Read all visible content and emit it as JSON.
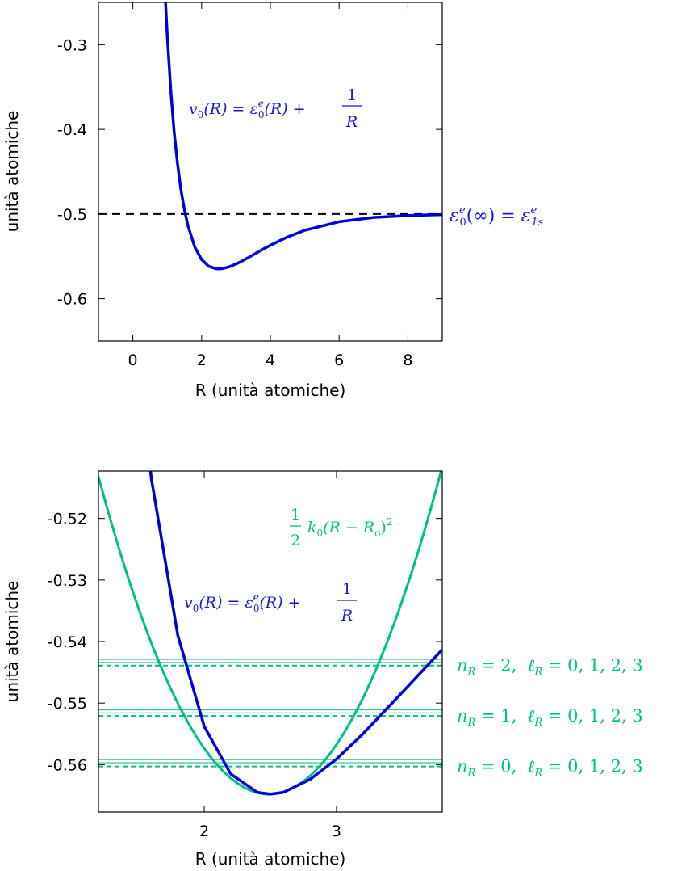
{
  "chart_data": [
    {
      "type": "line",
      "xlabel": "R (unità atomiche)",
      "ylabel": "unità atomiche",
      "xlim": [
        -1,
        9
      ],
      "ylim": [
        -0.65,
        -0.25
      ],
      "xticks": [
        0,
        2,
        4,
        6,
        8
      ],
      "xtick_labels": [
        "0",
        "2",
        "4",
        "6",
        "8"
      ],
      "yticks": [
        -0.3,
        -0.4,
        -0.5,
        -0.6
      ],
      "ytick_labels": [
        "-0.3",
        "-0.4",
        "-0.5",
        "-0.6"
      ],
      "series": [
        {
          "name": "v0(R)",
          "color": "#0000dd",
          "x": [
            0.95,
            1.0,
            1.1,
            1.2,
            1.3,
            1.4,
            1.5,
            1.6,
            1.8,
            2.0,
            2.2,
            2.4,
            2.5,
            2.6,
            2.8,
            3.0,
            3.2,
            3.5,
            3.8,
            4.0,
            4.5,
            5.0,
            6.0,
            7.0,
            8.0,
            9.0
          ],
          "y": [
            -0.2492,
            -0.2884,
            -0.3527,
            -0.4024,
            -0.4411,
            -0.4713,
            -0.495,
            -0.5135,
            -0.539,
            -0.5538,
            -0.5615,
            -0.5645,
            -0.5648,
            -0.5645,
            -0.5624,
            -0.5591,
            -0.555,
            -0.5482,
            -0.5413,
            -0.5369,
            -0.527,
            -0.5192,
            -0.5091,
            -0.504,
            -0.5017,
            -0.5007
          ]
        },
        {
          "name": "asymptote",
          "color": "#000000",
          "dashed": true,
          "x": [
            -1,
            9
          ],
          "y": [
            -0.5,
            -0.5
          ]
        }
      ],
      "annotations": {
        "curve_label": {
          "lhs": "v",
          "lhs_sub": "0",
          "arg": "(R) = ",
          "eps": "ε",
          "eps_sup": "e",
          "eps_sub": "0",
          "arg2": "(R) + ",
          "num": "1",
          "den": "R"
        },
        "asymptote_label": {
          "eps": "ε",
          "sup": "e",
          "sub": "0",
          "mid": "(∞) = ",
          "eps2": "ε",
          "sup2": "e",
          "sub2": "1s"
        }
      }
    },
    {
      "type": "line",
      "xlabel": "R (unità atomiche)",
      "ylabel": "unità atomiche",
      "xlim": [
        1.2,
        3.8
      ],
      "ylim": [
        -0.5677,
        -0.5123
      ],
      "xticks": [
        2,
        3
      ],
      "xtick_labels": [
        "2",
        "3"
      ],
      "yticks": [
        -0.52,
        -0.53,
        -0.54,
        -0.55,
        -0.56
      ],
      "ytick_labels": [
        "-0.52",
        "-0.53",
        "-0.54",
        "-0.55",
        "-0.56"
      ],
      "series": [
        {
          "name": "v0(R)",
          "color": "#0000dd",
          "x": [
            1.5,
            1.6,
            1.8,
            2.0,
            2.2,
            2.4,
            2.5,
            2.6,
            2.8,
            3.0,
            3.2,
            3.5,
            3.8
          ],
          "y": [
            -0.495,
            -0.5135,
            -0.539,
            -0.5538,
            -0.5615,
            -0.5645,
            -0.5648,
            -0.5645,
            -0.5624,
            -0.5591,
            -0.555,
            -0.5482,
            -0.5413
          ]
        },
        {
          "name": "harmonic",
          "color": "#00c08a",
          "k0": 0.062,
          "R0": 2.49,
          "v_min": -0.5648,
          "x_range": [
            1.2,
            3.8
          ]
        }
      ],
      "levels": [
        {
          "n": "2",
          "harmonic": -0.5439,
          "exact": [
            -0.5434,
            -0.5429
          ]
        },
        {
          "n": "1",
          "harmonic": -0.5521,
          "exact": [
            -0.5516,
            -0.5511
          ]
        },
        {
          "n": "0",
          "harmonic": -0.5603,
          "exact": [
            -0.5597,
            -0.5592
          ]
        }
      ],
      "annotations": {
        "curve_label": {
          "lhs": "v",
          "lhs_sub": "0",
          "arg": "(R) = ",
          "eps": "ε",
          "eps_sup": "e",
          "eps_sub": "0",
          "arg2": "(R) + ",
          "num": "1",
          "den": "R"
        },
        "harmonic_label": {
          "num": "1",
          "den": "2",
          "k": "k",
          "k_sub": "0",
          "mid": "(R − R",
          "r_sub": "o",
          "close": ")",
          "sup": "2"
        },
        "level_labels": [
          {
            "n_sym": "n",
            "sub": "R",
            "eq": " = 2,  ",
            "l_sym": "ℓ",
            "l_sub": "R",
            "vals": " = 0, 1, 2, 3"
          },
          {
            "n_sym": "n",
            "sub": "R",
            "eq": " = 1,  ",
            "l_sym": "ℓ",
            "l_sub": "R",
            "vals": " = 0, 1, 2, 3"
          },
          {
            "n_sym": "n",
            "sub": "R",
            "eq": " = 0,  ",
            "l_sym": "ℓ",
            "l_sub": "R",
            "vals": " = 0, 1, 2, 3"
          }
        ]
      }
    }
  ]
}
